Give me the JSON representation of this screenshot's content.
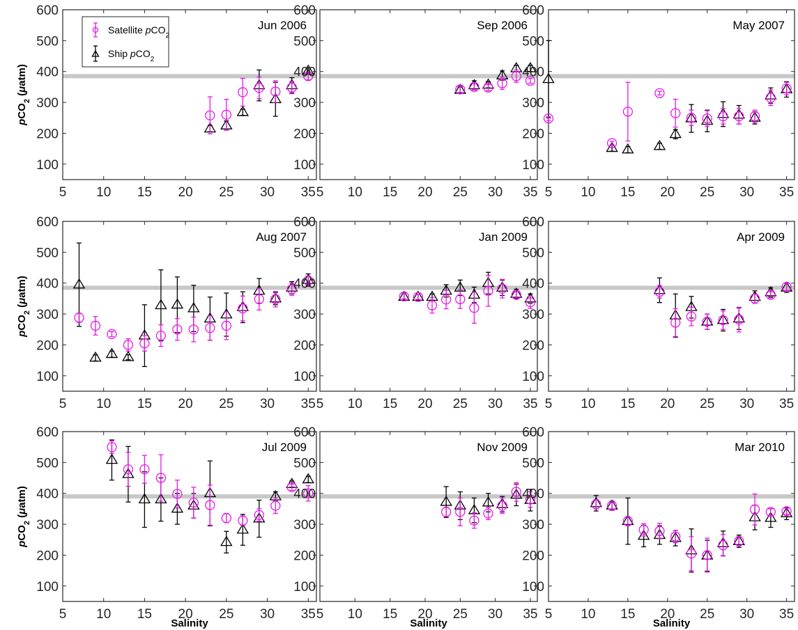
{
  "colors": {
    "satellite": "#e619e6",
    "ship": "#000000",
    "reference_line": "#c8c8c8"
  },
  "legend": {
    "satellite": {
      "label_prefix": "Satellite ",
      "label_italic": "p",
      "label_main": "CO",
      "label_sub": "2"
    },
    "ship": {
      "label_prefix": "Ship ",
      "label_italic": "p",
      "label_main": "CO",
      "label_sub": "2"
    }
  },
  "axes": {
    "ylabel": {
      "italic": "p",
      "main": "CO",
      "sub": "2",
      "unit_open": " (",
      "unit_mu": "μ",
      "unit_rest": "atm)"
    },
    "xlabel": "Salinity",
    "xticks": [
      "5",
      "10",
      "15",
      "20",
      "25",
      "30",
      "35"
    ],
    "yticks": [
      "100",
      "200",
      "300",
      "400",
      "500",
      "600"
    ]
  },
  "chart_data": [
    {
      "type": "scatter",
      "title": "Jun 2006",
      "xlim": [
        5,
        36
      ],
      "ylim": [
        50,
        600
      ],
      "reference_line": 385,
      "series": [
        {
          "name": "Satellite pCO2",
          "x": [
            23,
            25,
            27,
            29,
            31,
            33,
            35
          ],
          "y": [
            258,
            260,
            333,
            347,
            335,
            348,
            385
          ],
          "err": [
            60,
            50,
            45,
            35,
            35,
            20,
            12
          ]
        },
        {
          "name": "Ship pCO2",
          "x": [
            23,
            25,
            27,
            29,
            31,
            33,
            35
          ],
          "y": [
            215,
            225,
            268,
            355,
            310,
            355,
            402
          ],
          "err": [
            10,
            15,
            10,
            50,
            55,
            25,
            10
          ]
        }
      ]
    },
    {
      "type": "scatter",
      "title": "Sep 2006",
      "xlim": [
        5,
        36
      ],
      "ylim": [
        50,
        600
      ],
      "reference_line": 385,
      "series": [
        {
          "name": "Satellite pCO2",
          "x": [
            25,
            27,
            29,
            31,
            33,
            35
          ],
          "y": [
            342,
            350,
            348,
            362,
            385,
            370
          ],
          "err": [
            10,
            10,
            10,
            20,
            20,
            8
          ]
        },
        {
          "name": "Ship pCO2",
          "x": [
            25,
            27,
            29,
            31,
            33,
            35
          ],
          "y": [
            340,
            355,
            357,
            387,
            410,
            410
          ],
          "err": [
            10,
            15,
            10,
            15,
            10,
            10
          ]
        }
      ]
    },
    {
      "type": "scatter",
      "title": "May 2007",
      "xlim": [
        5,
        36
      ],
      "ylim": [
        50,
        600
      ],
      "reference_line": 385,
      "series": [
        {
          "name": "Satellite pCO2",
          "x": [
            5,
            13,
            15,
            19,
            21,
            23,
            25,
            27,
            29,
            31,
            33,
            35
          ],
          "y": [
            248,
            168,
            270,
            330,
            265,
            250,
            248,
            255,
            255,
            255,
            315,
            345
          ],
          "err": [
            6,
            6,
            95,
            6,
            45,
            25,
            25,
            25,
            25,
            20,
            25,
            20
          ]
        },
        {
          "name": "Ship pCO2",
          "x": [
            5,
            13,
            15,
            19,
            21,
            23,
            25,
            27,
            29,
            31,
            33,
            35
          ],
          "y": [
            375,
            152,
            147,
            158,
            197,
            248,
            240,
            262,
            260,
            250,
            322,
            342
          ],
          "err": [
            125,
            10,
            10,
            10,
            15,
            45,
            35,
            40,
            30,
            20,
            25,
            25
          ]
        }
      ]
    },
    {
      "type": "scatter",
      "title": "Aug 2007",
      "xlim": [
        5,
        36
      ],
      "ylim": [
        50,
        600
      ],
      "reference_line": 385,
      "series": [
        {
          "name": "Satellite pCO2",
          "x": [
            7,
            9,
            11,
            13,
            15,
            17,
            19,
            21,
            23,
            25,
            27,
            29,
            31,
            33,
            35
          ],
          "y": [
            288,
            262,
            235,
            200,
            205,
            230,
            250,
            250,
            255,
            262,
            318,
            348,
            348,
            380,
            408
          ],
          "err": [
            15,
            30,
            8,
            20,
            25,
            35,
            35,
            40,
            40,
            45,
            40,
            35,
            25,
            20,
            15
          ]
        },
        {
          "name": "Ship pCO2",
          "x": [
            7,
            9,
            11,
            13,
            15,
            17,
            19,
            21,
            23,
            25,
            27,
            29,
            31,
            33,
            35
          ],
          "y": [
            395,
            158,
            170,
            160,
            230,
            328,
            330,
            318,
            285,
            298,
            322,
            375,
            350,
            385,
            410
          ],
          "err": [
            135,
            10,
            10,
            8,
            100,
            115,
            90,
            75,
            70,
            70,
            50,
            40,
            20,
            20,
            20
          ]
        }
      ]
    },
    {
      "type": "scatter",
      "title": "Jan 2009",
      "xlim": [
        5,
        36
      ],
      "ylim": [
        50,
        600
      ],
      "reference_line": 385,
      "series": [
        {
          "name": "Satellite pCO2",
          "x": [
            17,
            19,
            21,
            23,
            25,
            27,
            29,
            31,
            33,
            35
          ],
          "y": [
            357,
            355,
            328,
            347,
            348,
            320,
            375,
            382,
            362,
            338
          ],
          "err": [
            8,
            8,
            25,
            30,
            30,
            50,
            50,
            30,
            10,
            20
          ]
        },
        {
          "name": "Ship pCO2",
          "x": [
            17,
            19,
            21,
            23,
            25,
            27,
            29,
            31,
            33,
            35
          ],
          "y": [
            355,
            355,
            355,
            375,
            385,
            362,
            400,
            385,
            365,
            350
          ],
          "err": [
            10,
            8,
            10,
            20,
            25,
            25,
            35,
            25,
            15,
            15
          ]
        }
      ]
    },
    {
      "type": "scatter",
      "title": "Apr 2009",
      "xlim": [
        5,
        36
      ],
      "ylim": [
        50,
        600
      ],
      "reference_line": 385,
      "series": [
        {
          "name": "Satellite pCO2",
          "x": [
            19,
            21,
            23,
            25,
            27,
            29,
            31,
            33,
            35
          ],
          "y": [
            372,
            272,
            292,
            275,
            280,
            282,
            350,
            362,
            388
          ],
          "err": [
            20,
            45,
            30,
            25,
            30,
            40,
            15,
            10,
            12
          ]
        },
        {
          "name": "Ship pCO2",
          "x": [
            19,
            21,
            23,
            25,
            27,
            29,
            31,
            33,
            35
          ],
          "y": [
            377,
            295,
            322,
            275,
            280,
            285,
            355,
            370,
            385
          ],
          "err": [
            40,
            70,
            35,
            25,
            35,
            35,
            20,
            15,
            15
          ]
        }
      ]
    },
    {
      "type": "scatter",
      "title": "Jul 2009",
      "xlim": [
        5,
        36
      ],
      "ylim": [
        50,
        600
      ],
      "reference_line": 390,
      "series": [
        {
          "name": "Satellite pCO2",
          "x": [
            11,
            13,
            15,
            17,
            19,
            21,
            23,
            25,
            27,
            29,
            31,
            33,
            35
          ],
          "y": [
            550,
            478,
            478,
            450,
            398,
            370,
            362,
            320,
            312,
            330,
            360,
            420,
            400
          ],
          "err": [
            20,
            55,
            45,
            75,
            45,
            50,
            65,
            15,
            15,
            20,
            25,
            10,
            25
          ]
        },
        {
          "name": "Ship pCO2",
          "x": [
            11,
            13,
            15,
            17,
            19,
            21,
            23,
            25,
            27,
            29,
            31,
            33,
            35
          ],
          "y": [
            508,
            462,
            380,
            380,
            350,
            360,
            400,
            242,
            282,
            318,
            390,
            430,
            445
          ],
          "err": [
            65,
            90,
            90,
            70,
            50,
            40,
            105,
            35,
            50,
            60,
            15,
            10,
            10
          ]
        }
      ]
    },
    {
      "type": "scatter",
      "title": "Nov 2009",
      "xlim": [
        5,
        36
      ],
      "ylim": [
        50,
        600
      ],
      "reference_line": 390,
      "series": [
        {
          "name": "Satellite pCO2",
          "x": [
            23,
            25,
            27,
            29,
            31,
            33,
            35
          ],
          "y": [
            340,
            340,
            312,
            335,
            360,
            405,
            380
          ],
          "err": [
            15,
            45,
            25,
            20,
            25,
            30,
            25
          ]
        },
        {
          "name": "Ship pCO2",
          "x": [
            23,
            25,
            27,
            29,
            31,
            33,
            35
          ],
          "y": [
            372,
            360,
            345,
            370,
            365,
            395,
            378
          ],
          "err": [
            50,
            45,
            40,
            30,
            25,
            35,
            35
          ]
        }
      ]
    },
    {
      "type": "scatter",
      "title": "Mar 2010",
      "xlim": [
        5,
        36
      ],
      "ylim": [
        50,
        600
      ],
      "reference_line": 390,
      "series": [
        {
          "name": "Satellite pCO2",
          "x": [
            11,
            13,
            15,
            17,
            19,
            21,
            23,
            25,
            27,
            29,
            31,
            33,
            35
          ],
          "y": [
            365,
            360,
            310,
            282,
            278,
            260,
            205,
            200,
            232,
            245,
            348,
            340,
            342
          ],
          "err": [
            15,
            10,
            15,
            20,
            25,
            20,
            55,
            55,
            35,
            15,
            50,
            10,
            10
          ]
        },
        {
          "name": "Ship pCO2",
          "x": [
            11,
            13,
            15,
            17,
            19,
            21,
            23,
            25,
            27,
            29,
            31,
            33,
            35
          ],
          "y": [
            368,
            360,
            310,
            262,
            265,
            255,
            215,
            198,
            238,
            245,
            322,
            320,
            335
          ],
          "err": [
            25,
            15,
            75,
            35,
            30,
            25,
            70,
            50,
            40,
            20,
            40,
            30,
            20
          ]
        }
      ]
    }
  ]
}
